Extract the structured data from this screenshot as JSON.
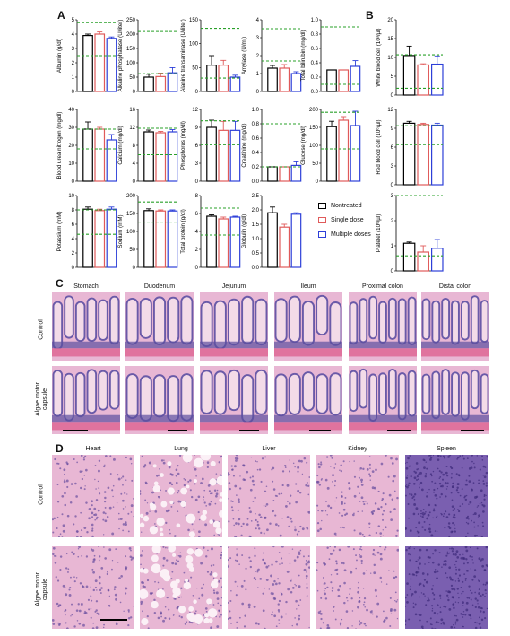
{
  "panels": {
    "A": "A",
    "B": "B",
    "C": "C",
    "D": "D"
  },
  "colors": {
    "nontreated": "#000000",
    "single": "#e05a5a",
    "multiple": "#2d3fd8",
    "ref": "#2aa02a"
  },
  "legend": [
    {
      "label": "Nontreated",
      "color": "#000000"
    },
    {
      "label": "Single dose",
      "color": "#e05a5a"
    },
    {
      "label": "Multiple doses",
      "color": "#2d3fd8"
    }
  ],
  "chart_data": [
    {
      "type": "bar",
      "ylabel": "Albumin (g/dl)",
      "ylim": [
        0,
        5
      ],
      "yticks": [
        "0",
        "1",
        "2",
        "3",
        "4",
        "5"
      ],
      "values": [
        3.9,
        4.0,
        3.7
      ],
      "errors": [
        0.1,
        0.15,
        0.1
      ],
      "ref": [
        2.5,
        4.8
      ]
    },
    {
      "type": "bar",
      "ylabel": "Alkaline phosphatase (U/liter)",
      "ylim": [
        0,
        250
      ],
      "yticks": [
        "0",
        "50",
        "100",
        "150",
        "200",
        "250"
      ],
      "values": [
        50,
        52,
        65
      ],
      "errors": [
        10,
        12,
        18
      ],
      "ref": [
        62,
        209
      ]
    },
    {
      "type": "bar",
      "ylabel": "Alanine transaminase (U/liter)",
      "ylim": [
        0,
        150
      ],
      "yticks": [
        "0",
        "50",
        "100",
        "150"
      ],
      "values": [
        55,
        55,
        30
      ],
      "errors": [
        20,
        10,
        4
      ],
      "ref": [
        28,
        132
      ]
    },
    {
      "type": "bar",
      "ylabel": "Amylase (U/ml)",
      "ylim": [
        0,
        4
      ],
      "yticks": [
        "0",
        "1",
        "2",
        "3",
        "4"
      ],
      "values": [
        1.3,
        1.3,
        1.0
      ],
      "errors": [
        0.15,
        0.2,
        0.1
      ],
      "ref": [
        1.7,
        3.5
      ]
    },
    {
      "type": "bar",
      "ylabel": "Total bilirubin (mg/dl)",
      "ylim": [
        0,
        1.0
      ],
      "yticks": [
        "0.0",
        "0.2",
        "0.4",
        "0.6",
        "0.8",
        "1.0"
      ],
      "values": [
        0.3,
        0.3,
        0.35
      ],
      "errors": [
        0.0,
        0.0,
        0.08
      ],
      "ref": [
        0.1,
        0.9
      ]
    },
    {
      "type": "bar",
      "ylabel": "Blood urea nitrogen (mg/dl)",
      "ylim": [
        0,
        40
      ],
      "yticks": [
        "0",
        "10",
        "20",
        "30",
        "40"
      ],
      "values": [
        29,
        29,
        23
      ],
      "errors": [
        4,
        1,
        3
      ],
      "ref": [
        18,
        29
      ]
    },
    {
      "type": "bar",
      "ylabel": "Calcium (mg/dl)",
      "ylim": [
        0,
        16
      ],
      "yticks": [
        "0",
        "4",
        "8",
        "12",
        "16"
      ],
      "values": [
        11,
        10.8,
        11
      ],
      "errors": [
        0.4,
        0.3,
        0.5
      ],
      "ref": [
        5.9,
        11.8
      ]
    },
    {
      "type": "bar",
      "ylabel": "Phosphorus (mg/dl)",
      "ylim": [
        0,
        12
      ],
      "yticks": [
        "0",
        "3",
        "6",
        "9",
        "12"
      ],
      "values": [
        9,
        8.5,
        8.5
      ],
      "errors": [
        1.2,
        1.5,
        1.5
      ],
      "ref": [
        6.1,
        10.1
      ]
    },
    {
      "type": "bar",
      "ylabel": "Creatinine (mg/dl)",
      "ylim": [
        0,
        1.0
      ],
      "yticks": [
        "0.0",
        "0.2",
        "0.4",
        "0.6",
        "0.8",
        "1.0"
      ],
      "values": [
        0.2,
        0.2,
        0.22
      ],
      "errors": [
        0.0,
        0.0,
        0.05
      ],
      "ref": [
        0.2,
        0.8
      ]
    },
    {
      "type": "bar",
      "ylabel": "Glucose (mg/dl)",
      "ylim": [
        0,
        200
      ],
      "yticks": [
        "0",
        "50",
        "100",
        "150",
        "200"
      ],
      "values": [
        152,
        170,
        155
      ],
      "errors": [
        15,
        10,
        40
      ],
      "ref": [
        90,
        192
      ]
    },
    {
      "type": "bar",
      "ylabel": "Potassium (mM)",
      "ylim": [
        0,
        10
      ],
      "yticks": [
        "0",
        "2",
        "4",
        "6",
        "8",
        "10"
      ],
      "values": [
        8.1,
        7.9,
        8.1
      ],
      "errors": [
        0.3,
        0.2,
        0.3
      ],
      "ref": [
        4.6,
        8
      ]
    },
    {
      "type": "bar",
      "ylabel": "Sodium (mM)",
      "ylim": [
        0,
        200
      ],
      "yticks": [
        "0",
        "50",
        "100",
        "150",
        "200"
      ],
      "values": [
        158,
        157,
        157
      ],
      "errors": [
        5,
        3,
        3
      ],
      "ref": [
        126,
        182
      ]
    },
    {
      "type": "bar",
      "ylabel": "Total protein (g/dl)",
      "ylim": [
        0,
        8
      ],
      "yticks": [
        "0",
        "2",
        "4",
        "6",
        "8"
      ],
      "values": [
        5.7,
        5.4,
        5.6
      ],
      "errors": [
        0.15,
        0.2,
        0.1
      ],
      "ref": [
        3.6,
        6.6
      ]
    },
    {
      "type": "bar",
      "ylabel": "Globulin (g/dl)",
      "ylim": [
        0,
        2.5
      ],
      "yticks": [
        "0.0",
        "0.5",
        "1.0",
        "1.5",
        "2.0",
        "2.5"
      ],
      "values": [
        1.9,
        1.4,
        1.85
      ],
      "errors": [
        0.2,
        0.1,
        0.05
      ],
      "ref": []
    },
    {
      "type": "bar",
      "ylabel": "White blood cell (10³/µl)",
      "ylim": [
        0,
        20
      ],
      "yticks": [
        "0",
        "5",
        "10",
        "15",
        "20"
      ],
      "values": [
        10.5,
        8,
        8.2
      ],
      "errors": [
        2.5,
        0.3,
        2.2
      ],
      "ref": [
        1.8,
        10.7
      ]
    },
    {
      "type": "bar",
      "ylabel": "Red blood cell (10⁶/µl)",
      "ylim": [
        0,
        12
      ],
      "yticks": [
        "0",
        "3",
        "6",
        "9",
        "12"
      ],
      "values": [
        9.8,
        9.6,
        9.5
      ],
      "errors": [
        0.3,
        0.2,
        0.3
      ],
      "ref": [
        6.4,
        9.4
      ]
    },
    {
      "type": "bar",
      "ylabel": "Platelet (10⁶/µl)",
      "ylim": [
        0,
        3
      ],
      "yticks": [
        "0",
        "1",
        "2",
        "3"
      ],
      "values": [
        1.1,
        0.75,
        0.9
      ],
      "errors": [
        0.05,
        0.25,
        0.35
      ],
      "ref": [
        0.6,
        3
      ]
    }
  ],
  "histology_c": {
    "columns": [
      "Stomach",
      "Duodenum",
      "Jejunum",
      "Ileum",
      "Proximal colon",
      "Distal colon"
    ],
    "rows": [
      "Control",
      "Algae motor capsule"
    ]
  },
  "histology_d": {
    "columns": [
      "Heart",
      "Lung",
      "Liver",
      "Kidney",
      "Spleen"
    ],
    "rows": [
      "Control",
      "Algae motor capsule"
    ]
  }
}
